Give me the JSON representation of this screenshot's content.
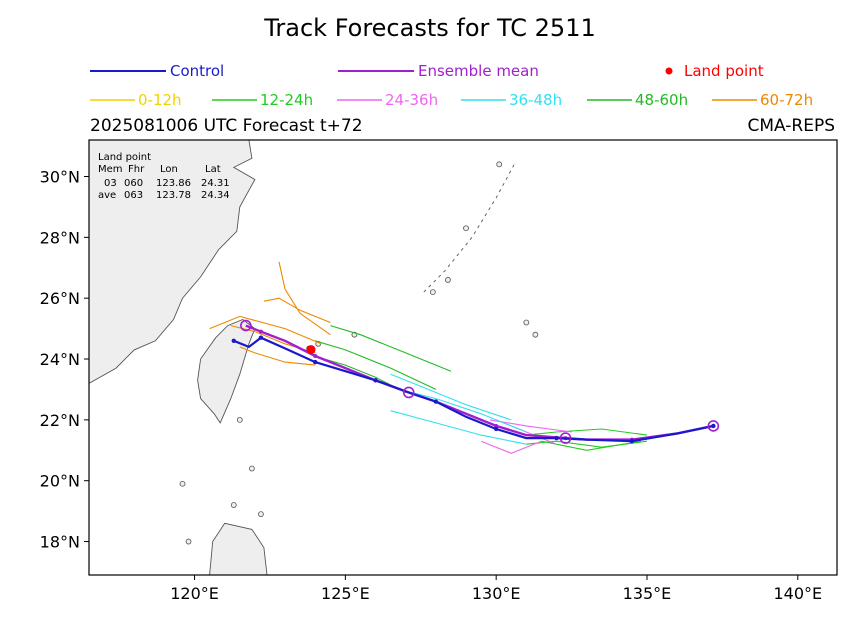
{
  "header": {
    "title": "Track Forecasts for TC 2511",
    "subtitle_left": "2025081006 UTC Forecast t+72",
    "subtitle_right": "CMA-REPS"
  },
  "land_box": {
    "heading": "Land point",
    "columns": [
      "Mem",
      "Fhr",
      "Lon",
      "Lat"
    ],
    "rows": [
      [
        "03",
        "060",
        "123.86",
        "24.31"
      ],
      [
        "ave",
        "063",
        "123.78",
        "24.34"
      ]
    ]
  },
  "colors": {
    "control": "#1a1acc",
    "mean": "#a020d0",
    "land": "#ff0000",
    "h0_12": "#f2d200",
    "h12_24": "#22cc22",
    "h24_36": "#ee66ee",
    "h36_48": "#33e0f0",
    "h48_60": "#22bb22",
    "h60_72": "#ee8800",
    "coast": "#555555",
    "landfill": "#eeeeee"
  },
  "chart_data": {
    "type": "line",
    "title": "Track Forecasts for TC 2511",
    "xlim": [
      116.5,
      141.3
    ],
    "ylim": [
      16.9,
      31.2
    ],
    "xticks": [
      120,
      125,
      130,
      135,
      140
    ],
    "xtick_labels": [
      "120°E",
      "125°E",
      "130°E",
      "135°E",
      "140°E"
    ],
    "yticks": [
      18,
      20,
      22,
      24,
      26,
      28,
      30
    ],
    "ytick_labels": [
      "18°N",
      "20°N",
      "22°N",
      "24°N",
      "26°N",
      "28°N",
      "30°N"
    ],
    "legend": [
      {
        "label": "Control",
        "color": "#1a1acc",
        "kind": "line"
      },
      {
        "label": "Ensemble mean",
        "color": "#a020d0",
        "kind": "line"
      },
      {
        "label": "Land point",
        "color": "#ff0000",
        "kind": "dot"
      },
      {
        "label": "0-12h",
        "color": "#f2d200",
        "kind": "line"
      },
      {
        "label": "12-24h",
        "color": "#22cc22",
        "kind": "line"
      },
      {
        "label": "24-36h",
        "color": "#ee66ee",
        "kind": "line"
      },
      {
        "label": "36-48h",
        "color": "#33e0f0",
        "kind": "line"
      },
      {
        "label": "48-60h",
        "color": "#22bb22",
        "kind": "line"
      },
      {
        "label": "60-72h",
        "color": "#ee8800",
        "kind": "line"
      }
    ],
    "control_track": [
      [
        137.2,
        21.8
      ],
      [
        136.0,
        21.55
      ],
      [
        134.5,
        21.3
      ],
      [
        133.0,
        21.35
      ],
      [
        132.0,
        21.4
      ],
      [
        131.0,
        21.4
      ],
      [
        130.0,
        21.7
      ],
      [
        129.0,
        22.1
      ],
      [
        128.0,
        22.6
      ],
      [
        127.1,
        22.9
      ],
      [
        126.0,
        23.3
      ],
      [
        125.0,
        23.6
      ],
      [
        124.0,
        23.9
      ],
      [
        123.0,
        24.35
      ],
      [
        122.2,
        24.7
      ],
      [
        121.8,
        24.4
      ],
      [
        121.3,
        24.6
      ]
    ],
    "mean_track": [
      [
        137.2,
        21.8
      ],
      [
        136.0,
        21.55
      ],
      [
        134.5,
        21.35
      ],
      [
        133.0,
        21.35
      ],
      [
        132.3,
        21.4
      ],
      [
        131.0,
        21.5
      ],
      [
        130.0,
        21.8
      ],
      [
        129.0,
        22.2
      ],
      [
        128.0,
        22.6
      ],
      [
        127.1,
        22.9
      ],
      [
        126.0,
        23.3
      ],
      [
        125.0,
        23.7
      ],
      [
        124.0,
        24.1
      ],
      [
        123.0,
        24.6
      ],
      [
        122.2,
        24.9
      ],
      [
        121.7,
        25.1
      ]
    ],
    "ensemble": [
      {
        "color": "#f2d200",
        "points": [
          [
            137.2,
            21.8
          ],
          [
            136.0,
            21.55
          ],
          [
            135.0,
            21.4
          ]
        ]
      },
      {
        "color": "#22cc22",
        "points": [
          [
            135.0,
            21.3
          ],
          [
            133.5,
            21.1
          ],
          [
            132.0,
            21.3
          ],
          [
            131.0,
            21.2
          ]
        ]
      },
      {
        "color": "#22cc22",
        "points": [
          [
            135.0,
            21.5
          ],
          [
            133.5,
            21.7
          ],
          [
            132.0,
            21.6
          ],
          [
            131.0,
            21.5
          ]
        ]
      },
      {
        "color": "#22cc22",
        "points": [
          [
            134.8,
            21.3
          ],
          [
            133.0,
            21.0
          ],
          [
            131.5,
            21.3
          ]
        ]
      },
      {
        "color": "#ee66ee",
        "points": [
          [
            131.5,
            21.3
          ],
          [
            130.5,
            20.9
          ],
          [
            129.5,
            21.3
          ]
        ]
      },
      {
        "color": "#ee66ee",
        "points": [
          [
            132.5,
            21.6
          ],
          [
            131.0,
            21.8
          ],
          [
            129.8,
            22.0
          ]
        ]
      },
      {
        "color": "#ee66ee",
        "points": [
          [
            132.0,
            21.2
          ],
          [
            131.0,
            21.6
          ],
          [
            130.0,
            22.0
          ]
        ]
      },
      {
        "color": "#33e0f0",
        "points": [
          [
            131.0,
            21.2
          ],
          [
            129.5,
            21.5
          ],
          [
            128.0,
            21.9
          ],
          [
            126.5,
            22.3
          ]
        ]
      },
      {
        "color": "#33e0f0",
        "points": [
          [
            130.5,
            22.0
          ],
          [
            129.0,
            22.5
          ],
          [
            127.5,
            23.1
          ],
          [
            126.5,
            23.5
          ]
        ]
      },
      {
        "color": "#33e0f0",
        "points": [
          [
            131.0,
            21.6
          ],
          [
            129.5,
            22.2
          ],
          [
            128.0,
            22.7
          ],
          [
            126.8,
            23.0
          ]
        ]
      },
      {
        "color": "#22bb22",
        "points": [
          [
            127.0,
            22.9
          ],
          [
            126.0,
            23.4
          ],
          [
            125.0,
            23.8
          ],
          [
            124.3,
            24.0
          ]
        ]
      },
      {
        "color": "#22bb22",
        "points": [
          [
            128.5,
            23.6
          ],
          [
            127.0,
            24.2
          ],
          [
            125.5,
            24.8
          ],
          [
            124.5,
            25.1
          ]
        ]
      },
      {
        "color": "#22bb22",
        "points": [
          [
            128.0,
            23.0
          ],
          [
            126.5,
            23.7
          ],
          [
            125.0,
            24.3
          ],
          [
            124.0,
            24.6
          ]
        ]
      },
      {
        "color": "#ee8800",
        "points": [
          [
            124.5,
            24.8
          ],
          [
            123.5,
            25.5
          ],
          [
            123.0,
            26.3
          ],
          [
            122.8,
            27.2
          ]
        ]
      },
      {
        "color": "#ee8800",
        "points": [
          [
            124.0,
            24.2
          ],
          [
            123.0,
            24.5
          ],
          [
            122.0,
            24.9
          ],
          [
            121.2,
            25.1
          ]
        ]
      },
      {
        "color": "#ee8800",
        "points": [
          [
            124.0,
            23.8
          ],
          [
            123.0,
            23.9
          ],
          [
            122.0,
            24.2
          ],
          [
            121.5,
            24.4
          ]
        ]
      },
      {
        "color": "#ee8800",
        "points": [
          [
            124.5,
            25.2
          ],
          [
            123.5,
            25.6
          ],
          [
            122.8,
            26.0
          ],
          [
            122.3,
            25.9
          ]
        ]
      },
      {
        "color": "#ee8800",
        "points": [
          [
            124.2,
            24.5
          ],
          [
            123.0,
            25.0
          ],
          [
            121.5,
            25.4
          ],
          [
            120.5,
            25.0
          ]
        ]
      }
    ],
    "land_point": [
      123.86,
      24.31
    ]
  }
}
